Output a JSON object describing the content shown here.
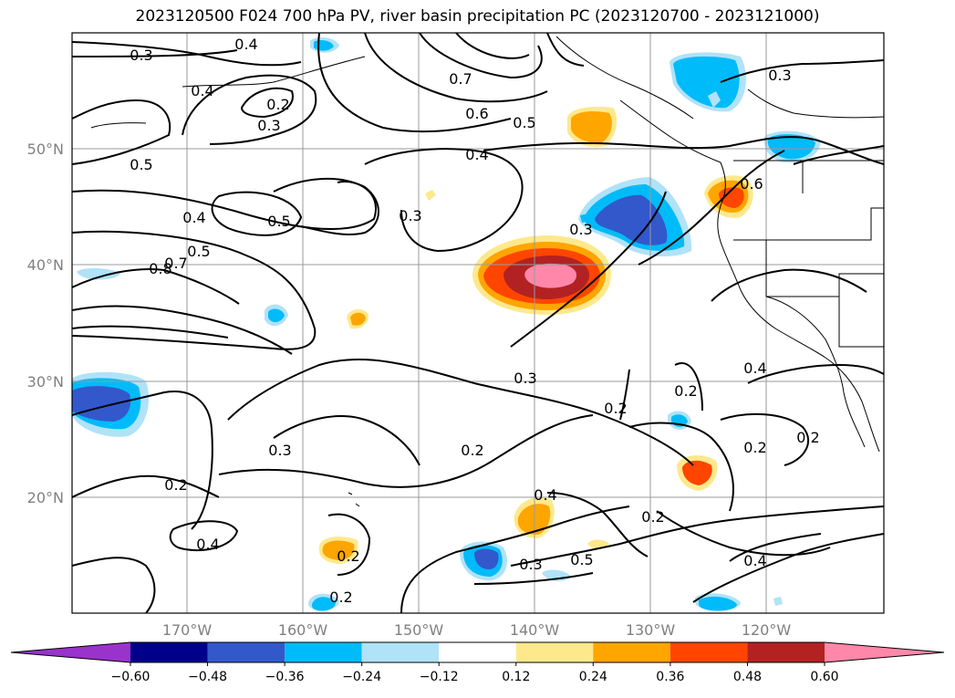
{
  "title": "2023120500 F024 700 hPa PV, river basin precipitation PC (2023120700 - 2023121000)",
  "lat_labels": [
    "50°N",
    "40°N",
    "30°N",
    "20°N"
  ],
  "lon_labels": [
    "170°W",
    "160°W",
    "150°W",
    "140°W",
    "130°W",
    "120°W"
  ],
  "colorbar": {
    "tick_labels": [
      "−0.60",
      "−0.48",
      "−0.36",
      "−0.24",
      "−0.12",
      "0.12",
      "0.24",
      "0.36",
      "0.48",
      "0.60"
    ],
    "colors": [
      "#9933cc",
      "#00008b",
      "#3358cc",
      "#00bbf9",
      "#b0e2f8",
      "#ffffff",
      "#fde98c",
      "#ffa500",
      "#ff4500",
      "#b22222",
      "#ff88aa"
    ]
  },
  "contour_labels": [
    "0.3",
    "0.4",
    "0.4",
    "0.2",
    "0.3",
    "0.7",
    "0.6",
    "0.5",
    "0.4",
    "0.3",
    "0.5",
    "0.5",
    "0.4",
    "0.5",
    "0.8",
    "0.7",
    "0.3",
    "0.3",
    "0.2",
    "0.3",
    "0.2",
    "0.2",
    "0.4",
    "0.2",
    "0.2",
    "0.4",
    "0.5",
    "0.3",
    "0.2",
    "0.2",
    "0.2",
    "0.4",
    "0.2",
    "0.6",
    "0.3",
    "0.4"
  ]
}
